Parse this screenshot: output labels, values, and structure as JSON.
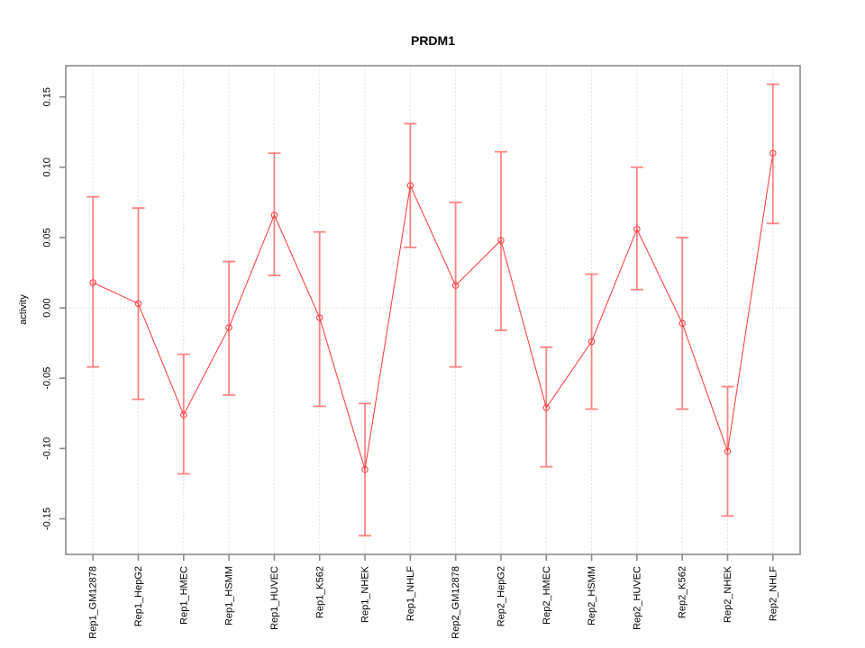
{
  "chart_data": {
    "type": "line",
    "title": "PRDM1",
    "xlabel": "",
    "ylabel": "activity",
    "categories": [
      "Rep1_GM12878",
      "Rep1_HepG2",
      "Rep1_HMEC",
      "Rep1_HSMM",
      "Rep1_HUVEC",
      "Rep1_K562",
      "Rep1_NHEK",
      "Rep1_NHLF",
      "Rep2_GM12878",
      "Rep2_HepG2",
      "Rep2_HMEC",
      "Rep2_HSMM",
      "Rep2_HUVEC",
      "Rep2_K562",
      "Rep2_NHEK",
      "Rep2_NHLF"
    ],
    "series": [
      {
        "name": "activity",
        "values": [
          0.018,
          0.003,
          -0.076,
          -0.014,
          0.066,
          -0.007,
          -0.115,
          0.087,
          0.016,
          0.048,
          -0.071,
          -0.024,
          0.056,
          -0.011,
          -0.102,
          0.11
        ],
        "ci_lower": [
          -0.042,
          -0.065,
          -0.118,
          -0.062,
          0.023,
          -0.07,
          -0.162,
          0.043,
          -0.042,
          -0.016,
          -0.113,
          -0.072,
          0.013,
          -0.072,
          -0.148,
          0.06
        ],
        "ci_upper": [
          0.079,
          0.071,
          -0.033,
          0.033,
          0.11,
          0.054,
          -0.068,
          0.131,
          0.075,
          0.111,
          -0.028,
          0.024,
          0.1,
          0.05,
          -0.056,
          0.159
        ]
      }
    ],
    "ylim": [
      -0.1753,
      0.1722
    ],
    "yticks": [
      -0.15,
      -0.1,
      -0.05,
      0.0,
      0.05,
      0.1,
      0.15
    ],
    "ytick_labels": [
      "-0.15",
      "-0.10",
      "-0.05",
      "0.00",
      "0.05",
      "0.10",
      "0.15"
    ],
    "grid": {
      "vertical_at_categories": true,
      "horizontal_at_zero": true,
      "style": "dotted"
    },
    "legend": "none",
    "point_style": "open-circle",
    "error_bars": true,
    "colors": {
      "line": "#ff4444",
      "point": "#ff4444",
      "error_bar": "#ff7777",
      "grid": "#d8d8d8",
      "frame": "#8a8a8a",
      "tick": "#8a8a8a",
      "text": "#000000",
      "background": "#ffffff"
    }
  }
}
